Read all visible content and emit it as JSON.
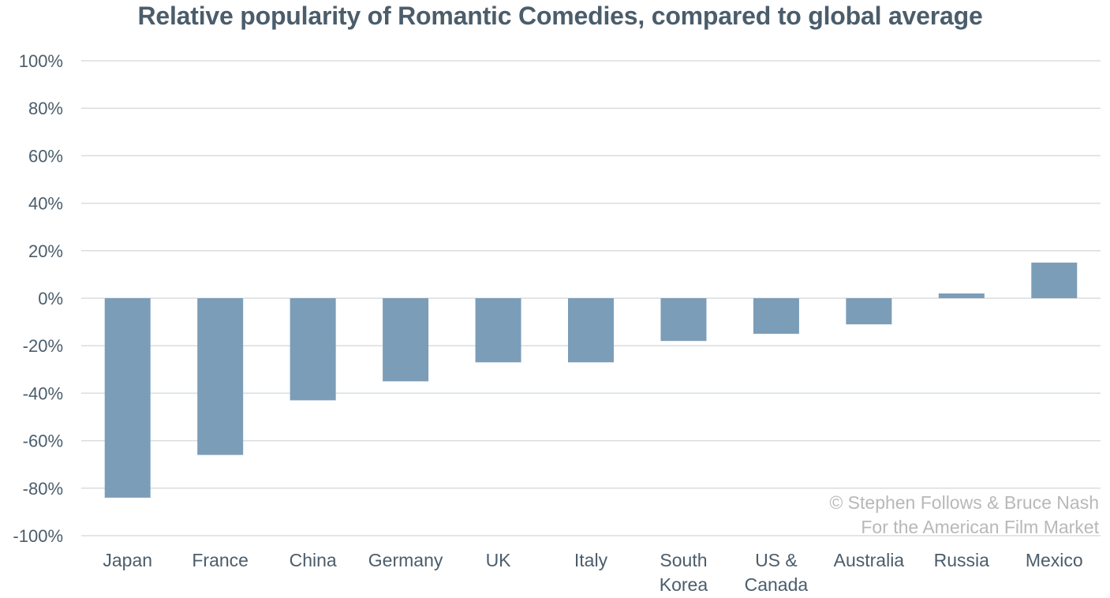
{
  "chart_data": {
    "type": "bar",
    "title": "Relative popularity of Romantic Comedies, compared to global average",
    "xlabel": "",
    "ylabel": "",
    "ylim": [
      -100,
      100
    ],
    "y_ticks": [
      "100%",
      "80%",
      "60%",
      "40%",
      "20%",
      "0%",
      "-20%",
      "-40%",
      "-60%",
      "-80%",
      "-100%"
    ],
    "y_tick_values": [
      100,
      80,
      60,
      40,
      20,
      0,
      -20,
      -40,
      -60,
      -80,
      -100
    ],
    "categories": [
      [
        "Japan"
      ],
      [
        "France"
      ],
      [
        "China"
      ],
      [
        "Germany"
      ],
      [
        "UK"
      ],
      [
        "Italy"
      ],
      [
        "South",
        "Korea"
      ],
      [
        "US &",
        "Canada"
      ],
      [
        "Australia"
      ],
      [
        "Russia"
      ],
      [
        "Mexico"
      ]
    ],
    "values": [
      -84,
      -66,
      -43,
      -35,
      -27,
      -27,
      -18,
      -15,
      -11,
      2,
      15
    ],
    "grid": true,
    "bar_color": "#7b9db8",
    "grid_color": "#d9dde0",
    "text_color": "#4b5d6b",
    "annotation": [
      "© Stephen Follows & Bruce Nash",
      "For the American Film Market"
    ]
  }
}
